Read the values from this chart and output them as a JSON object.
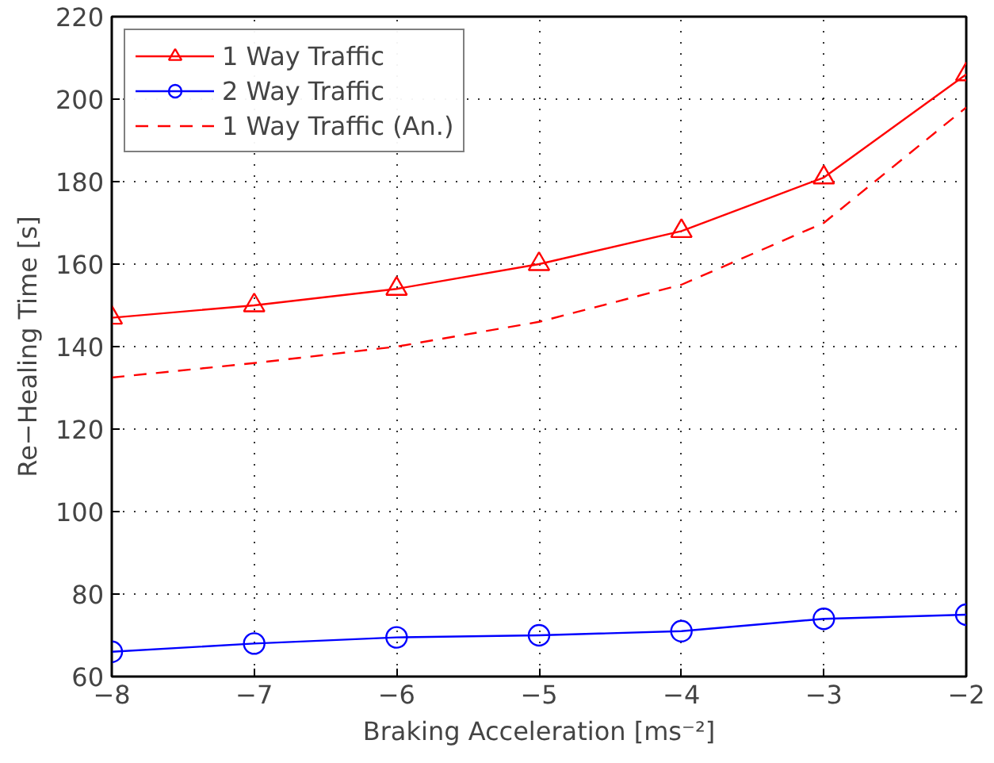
{
  "chart_data": {
    "type": "line",
    "xlabel": "Braking Acceleration [ms⁻²]",
    "ylabel": "Re−Healing Time [s]",
    "x": [
      -8,
      -7,
      -6,
      -5,
      -4,
      -3,
      -2
    ],
    "xlim": [
      -8,
      -2
    ],
    "xticks": [
      {
        "value": -8,
        "label": "−8"
      },
      {
        "value": -7,
        "label": "−7"
      },
      {
        "value": -6,
        "label": "−6"
      },
      {
        "value": -5,
        "label": "−5"
      },
      {
        "value": -4,
        "label": "−4"
      },
      {
        "value": -3,
        "label": "−3"
      },
      {
        "value": -2,
        "label": "−2"
      }
    ],
    "ylim": [
      60,
      220
    ],
    "yticks": [
      60,
      80,
      100,
      120,
      140,
      160,
      180,
      200,
      220
    ],
    "grid": true,
    "legend": "top left",
    "series": [
      {
        "name": "1 Way Traffic",
        "color": "#ff0000",
        "marker": "triangle",
        "line_style": "solid",
        "values": [
          147,
          150,
          154,
          160,
          168,
          181,
          206
        ]
      },
      {
        "name": "2 Way Traffic",
        "color": "#0000ff",
        "marker": "circle",
        "line_style": "solid",
        "values": [
          66,
          68,
          69.5,
          70,
          71,
          74,
          75
        ]
      },
      {
        "name": "1 Way Traffic (An.)",
        "color": "#ff0000",
        "marker": "none",
        "line_style": "dashed",
        "values": [
          132.5,
          136,
          140,
          146,
          155,
          170,
          198
        ]
      }
    ]
  }
}
